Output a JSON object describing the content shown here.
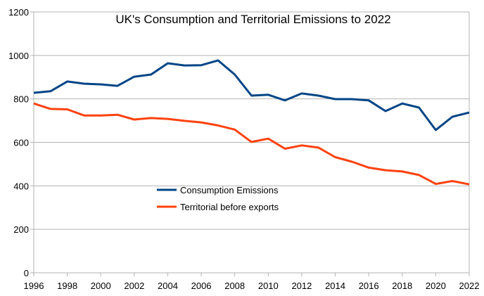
{
  "chart_data": {
    "type": "line",
    "title": "UK's Consumption and Territorial Emissions to 2022",
    "xlabel": "",
    "ylabel": "",
    "x": [
      1996,
      1997,
      1998,
      1999,
      2000,
      2001,
      2002,
      2003,
      2004,
      2005,
      2006,
      2007,
      2008,
      2009,
      2010,
      2011,
      2012,
      2013,
      2014,
      2015,
      2016,
      2017,
      2018,
      2019,
      2020,
      2021,
      2022
    ],
    "xlim": [
      1996,
      2022
    ],
    "ylim": [
      0,
      1200
    ],
    "x_ticks": [
      "1996",
      "1998",
      "2000",
      "2002",
      "2004",
      "2006",
      "2008",
      "2010",
      "2012",
      "2014",
      "2016",
      "2018",
      "2020",
      "2022"
    ],
    "y_ticks": [
      "0",
      "200",
      "400",
      "600",
      "800",
      "1000",
      "1200"
    ],
    "grid": true,
    "legend_position": "center-left inside plot",
    "series": [
      {
        "name": "Consumption Emissions",
        "color": "#004586",
        "values": [
          828,
          835,
          880,
          870,
          867,
          860,
          902,
          912,
          964,
          954,
          955,
          977,
          912,
          815,
          819,
          793,
          825,
          815,
          799,
          799,
          793,
          744,
          779,
          760,
          657,
          718,
          737
        ]
      },
      {
        "name": "Territorial before exports",
        "color": "#ff420e",
        "values": [
          779,
          754,
          752,
          724,
          724,
          727,
          705,
          712,
          708,
          699,
          692,
          678,
          659,
          602,
          617,
          571,
          586,
          576,
          532,
          511,
          484,
          472,
          466,
          450,
          409,
          422,
          407
        ]
      }
    ]
  }
}
